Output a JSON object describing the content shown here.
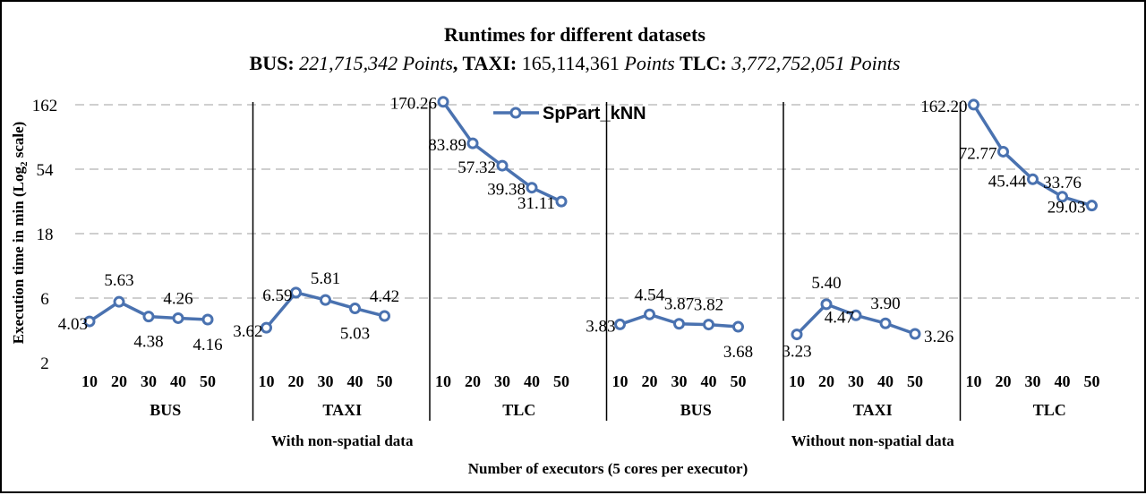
{
  "chart_data": {
    "type": "line",
    "title": "Runtimes for different datasets",
    "subtitle": {
      "bus_label": "BUS:",
      "bus_value": "221,715,342 Points",
      "taxi_label": "TAXI:",
      "taxi_count": "165,114,361",
      "taxi_unit": "Points",
      "tlc_label": "TLC:",
      "tlc_value": "3,772,752,051 Points"
    },
    "ylabel_main": "Execution time in min (Log",
    "ylabel_sub": "2",
    "ylabel_tail": " scale)",
    "xlabel": "Number of executors (5 cores per executor)",
    "y_scale": "log2",
    "ylim": [
      2,
      162
    ],
    "y_ticks": [
      "2",
      "6",
      "18",
      "54",
      "162"
    ],
    "y_tick_values": [
      2,
      6,
      18,
      54,
      162
    ],
    "grid": "horizontal dashed",
    "legend": {
      "position": "top-center",
      "label": "SpPart_kNN"
    },
    "series_color": "#4a72b0",
    "groups": [
      {
        "section": "With non-spatial data",
        "dataset": "BUS",
        "x": [
          "10",
          "20",
          "30",
          "40",
          "50"
        ],
        "values": [
          4.03,
          5.63,
          4.38,
          4.26,
          4.16
        ],
        "labels": [
          "4.03",
          "5.63",
          "4.38",
          "4.26",
          "4.16"
        ]
      },
      {
        "section": "With non-spatial data",
        "dataset": "TAXI",
        "x": [
          "10",
          "20",
          "30",
          "40",
          "50"
        ],
        "values": [
          3.62,
          6.59,
          5.81,
          5.03,
          4.42
        ],
        "labels": [
          "3.62",
          "6.59",
          "5.81",
          "5.03",
          "4.42"
        ]
      },
      {
        "section": "With non-spatial data",
        "dataset": "TLC",
        "x": [
          "10",
          "20",
          "30",
          "40",
          "50"
        ],
        "values": [
          170.26,
          83.89,
          57.32,
          39.38,
          31.11
        ],
        "labels": [
          "170.26",
          "83.89",
          "57.32",
          "39.38",
          "31.11"
        ]
      },
      {
        "section": "Without non-spatial data",
        "dataset": "BUS",
        "x": [
          "10",
          "20",
          "30",
          "40",
          "50"
        ],
        "values": [
          3.83,
          4.54,
          3.87,
          3.82,
          3.68
        ],
        "labels": [
          "3.83",
          "4.54",
          "3.87",
          "3.82",
          "3.68"
        ]
      },
      {
        "section": "Without non-spatial data",
        "dataset": "TAXI",
        "x": [
          "10",
          "20",
          "30",
          "40",
          "50"
        ],
        "values": [
          3.23,
          5.4,
          4.47,
          3.9,
          3.26
        ],
        "labels": [
          "3.23",
          "5.40",
          "4.47",
          "3.90",
          "3.26"
        ]
      },
      {
        "section": "Without non-spatial data",
        "dataset": "TLC",
        "x": [
          "10",
          "20",
          "30",
          "40",
          "50"
        ],
        "values": [
          162.2,
          72.77,
          45.44,
          33.76,
          29.03
        ],
        "labels": [
          "162.20",
          "72.77",
          "45.44",
          "33.76",
          "29.03"
        ]
      }
    ],
    "sections": [
      "With non-spatial data",
      "Without non-spatial data"
    ]
  }
}
